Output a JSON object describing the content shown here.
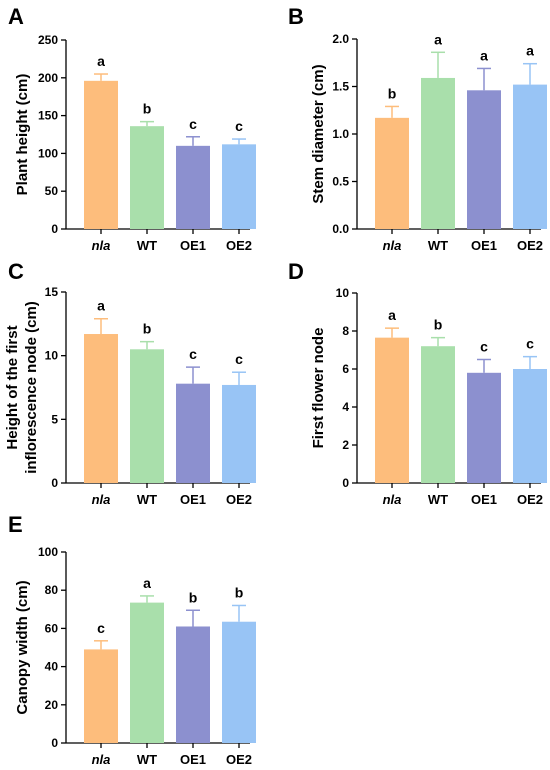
{
  "colors": {
    "nla": "#FDBD7C",
    "WT": "#A9DFAB",
    "OE1": "#8C90CF",
    "OE2": "#98C4F5",
    "axis": "#000000"
  },
  "chart_data": [
    {
      "panel": "A",
      "type": "bar",
      "categories": [
        "nla",
        "WT",
        "OE1",
        "OE2"
      ],
      "values": [
        196,
        136,
        110,
        112
      ],
      "errors": [
        9,
        6,
        12,
        7
      ],
      "significance": [
        "a",
        "b",
        "c",
        "c"
      ],
      "ylabel": "Plant height (cm)",
      "ylim": [
        0,
        250
      ],
      "yticks": [
        0,
        50,
        100,
        150,
        200,
        250
      ],
      "ytick_labels": [
        "0",
        "50",
        "100",
        "150",
        "200",
        "250"
      ]
    },
    {
      "panel": "B",
      "type": "bar",
      "categories": [
        "nla",
        "WT",
        "OE1",
        "OE2"
      ],
      "values": [
        1.17,
        1.59,
        1.46,
        1.52
      ],
      "errors": [
        0.12,
        0.27,
        0.23,
        0.22
      ],
      "significance": [
        "b",
        "a",
        "a",
        "a"
      ],
      "ylabel": "Stem diameter (cm)",
      "ylim": [
        0,
        2.0
      ],
      "yticks": [
        0,
        0.5,
        1.0,
        1.5,
        2.0
      ],
      "ytick_labels": [
        "0.0",
        "0.5",
        "1.0",
        "1.5",
        "2.0"
      ]
    },
    {
      "panel": "C",
      "type": "bar",
      "categories": [
        "nla",
        "WT",
        "OE1",
        "OE2"
      ],
      "values": [
        11.7,
        10.5,
        7.8,
        7.7
      ],
      "errors": [
        1.2,
        0.6,
        1.3,
        1.0
      ],
      "significance": [
        "a",
        "b",
        "c",
        "c"
      ],
      "ylabel": [
        "Height of the first",
        "inflorescence node (cm)"
      ],
      "ylim": [
        0,
        15
      ],
      "yticks": [
        0,
        5,
        10,
        15
      ],
      "ytick_labels": [
        "0",
        "5",
        "10",
        "15"
      ]
    },
    {
      "panel": "D",
      "type": "bar",
      "categories": [
        "nla",
        "WT",
        "OE1",
        "OE2"
      ],
      "values": [
        7.65,
        7.2,
        5.8,
        6.0
      ],
      "errors": [
        0.5,
        0.45,
        0.7,
        0.65
      ],
      "significance": [
        "a",
        "b",
        "c",
        "c"
      ],
      "ylabel": "First flower node",
      "ylim": [
        0,
        10
      ],
      "yticks": [
        0,
        2,
        4,
        6,
        8,
        10
      ],
      "ytick_labels": [
        "0",
        "2",
        "4",
        "6",
        "8",
        "10"
      ]
    },
    {
      "panel": "E",
      "type": "bar",
      "categories": [
        "nla",
        "WT",
        "OE1",
        "OE2"
      ],
      "values": [
        49,
        73.5,
        61,
        63.5
      ],
      "errors": [
        4.5,
        3.5,
        8.5,
        8.5
      ],
      "significance": [
        "c",
        "a",
        "b",
        "b"
      ],
      "ylabel": "Canopy width (cm)",
      "ylim": [
        0,
        100
      ],
      "yticks": [
        0,
        20,
        40,
        60,
        80,
        100
      ],
      "ytick_labels": [
        "0",
        "20",
        "40",
        "60",
        "80",
        "100"
      ]
    }
  ]
}
